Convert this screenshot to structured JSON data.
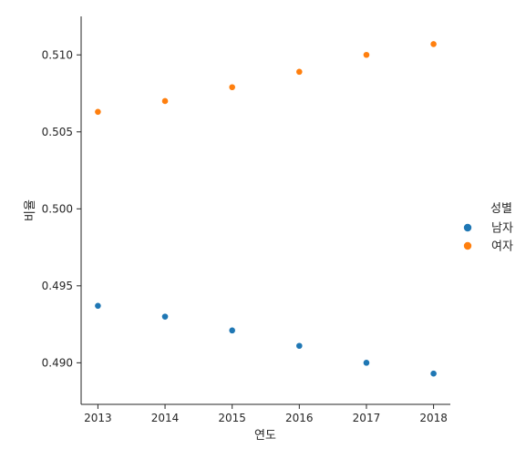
{
  "chart_data": {
    "type": "scatter",
    "title": "",
    "xlabel": "연도",
    "ylabel": "비율",
    "x": [
      2013,
      2014,
      2015,
      2016,
      2017,
      2018
    ],
    "xlim": [
      2012.75,
      2018.25
    ],
    "ylim": [
      0.4873,
      0.5125
    ],
    "xticks": [
      "2013",
      "2014",
      "2015",
      "2016",
      "2017",
      "2018"
    ],
    "yticks": [
      "0.490",
      "0.495",
      "0.500",
      "0.505",
      "0.510"
    ],
    "grid": false,
    "legend": {
      "title": "성별",
      "placement": "right"
    },
    "series": [
      {
        "name": "남자",
        "color": "#1f77b4",
        "values": [
          0.4937,
          0.493,
          0.4921,
          0.4911,
          0.49,
          0.4893
        ]
      },
      {
        "name": "여자",
        "color": "#ff7f0e",
        "values": [
          0.5063,
          0.507,
          0.5079,
          0.5089,
          0.51,
          0.5107
        ]
      }
    ]
  }
}
